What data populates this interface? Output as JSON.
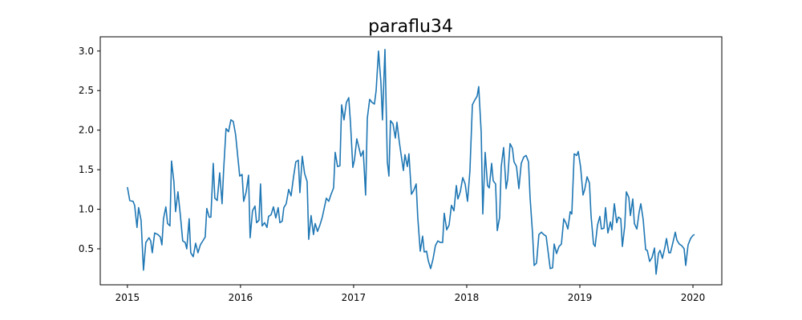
{
  "chart_data": {
    "type": "line",
    "title": "paraflu34",
    "color": "#1f77b4",
    "x": [
      2015.0,
      2015.021,
      2015.05,
      2015.064,
      2015.085,
      2015.099,
      2015.121,
      2015.142,
      2015.163,
      2015.191,
      2015.206,
      2015.22,
      2015.241,
      2015.27,
      2015.291,
      2015.305,
      2015.319,
      2015.34,
      2015.355,
      2015.376,
      2015.39,
      2015.411,
      2015.426,
      2015.447,
      2015.468,
      2015.489,
      2015.511,
      2015.525,
      2015.546,
      2015.56,
      2015.582,
      2015.603,
      2015.624,
      2015.645,
      2015.667,
      2015.688,
      2015.702,
      2015.723,
      2015.738,
      2015.759,
      2015.773,
      2015.794,
      2015.816,
      2015.837,
      2015.851,
      2015.872,
      2015.894,
      2015.915,
      2015.936,
      2015.957,
      2015.979,
      2015.993,
      2016.014,
      2016.028,
      2016.05,
      2016.071,
      2016.085,
      2016.106,
      2016.128,
      2016.142,
      2016.163,
      2016.177,
      2016.191,
      2016.213,
      2016.234,
      2016.248,
      2016.27,
      2016.291,
      2016.312,
      2016.333,
      2016.348,
      2016.369,
      2016.383,
      2016.404,
      2016.426,
      2016.447,
      2016.468,
      2016.489,
      2016.511,
      2016.525,
      2016.546,
      2016.567,
      2016.589,
      2016.603,
      2016.624,
      2016.645,
      2016.66,
      2016.681,
      2016.702,
      2016.723,
      2016.738,
      2016.759,
      2016.78,
      2016.801,
      2016.823,
      2016.837,
      2016.858,
      2016.879,
      2016.894,
      2016.915,
      2016.936,
      2016.957,
      2016.972,
      2016.993,
      2017.007,
      2017.028,
      2017.05,
      2017.064,
      2017.085,
      2017.106,
      2017.121,
      2017.142,
      2017.163,
      2017.184,
      2017.199,
      2017.22,
      2017.241,
      2017.255,
      2017.277,
      2017.298,
      2017.312,
      2017.326,
      2017.348,
      2017.369,
      2017.383,
      2017.404,
      2017.418,
      2017.44,
      2017.454,
      2017.475,
      2017.489,
      2017.511,
      2017.532,
      2017.553,
      2017.567,
      2017.589,
      2017.61,
      2017.624,
      2017.645,
      2017.66,
      2017.681,
      2017.702,
      2017.723,
      2017.745,
      2017.766,
      2017.787,
      2017.801,
      2017.823,
      2017.844,
      2017.865,
      2017.887,
      2017.908,
      2017.922,
      2017.943,
      2017.965,
      2017.986,
      2018.007,
      2018.028,
      2018.05,
      2018.071,
      2018.092,
      2018.106,
      2018.128,
      2018.142,
      2018.163,
      2018.184,
      2018.199,
      2018.22,
      2018.234,
      2018.255,
      2018.27,
      2018.291,
      2018.305,
      2018.326,
      2018.348,
      2018.362,
      2018.383,
      2018.404,
      2018.418,
      2018.44,
      2018.461,
      2018.482,
      2018.504,
      2018.525,
      2018.546,
      2018.56,
      2018.582,
      2018.596,
      2018.617,
      2018.638,
      2018.66,
      2018.681,
      2018.702,
      2018.716,
      2018.738,
      2018.759,
      2018.773,
      2018.794,
      2018.816,
      2018.837,
      2018.858,
      2018.879,
      2018.894,
      2018.915,
      2018.929,
      2018.95,
      2018.972,
      2018.986,
      2019.007,
      2019.028,
      2019.043,
      2019.064,
      2019.085,
      2019.099,
      2019.121,
      2019.135,
      2019.156,
      2019.177,
      2019.191,
      2019.213,
      2019.227,
      2019.248,
      2019.27,
      2019.284,
      2019.305,
      2019.326,
      2019.34,
      2019.362,
      2019.376,
      2019.397,
      2019.411,
      2019.433,
      2019.447,
      2019.468,
      2019.482,
      2019.504,
      2019.525,
      2019.539,
      2019.56,
      2019.582,
      2019.596,
      2019.617,
      2019.638,
      2019.66,
      2019.674,
      2019.695,
      2019.709,
      2019.73,
      2019.752,
      2019.766,
      2019.787,
      2019.801,
      2019.823,
      2019.844,
      2019.858,
      2019.879,
      2019.901,
      2019.922,
      2019.936,
      2019.957,
      2019.979,
      2020.0,
      2020.014
    ],
    "values": [
      1.28,
      1.11,
      1.1,
      1.05,
      0.77,
      1.02,
      0.86,
      0.23,
      0.58,
      0.64,
      0.6,
      0.45,
      0.7,
      0.68,
      0.65,
      0.55,
      0.88,
      1.03,
      0.82,
      0.79,
      1.61,
      1.35,
      0.97,
      1.22,
      0.93,
      0.6,
      0.58,
      0.5,
      0.88,
      0.45,
      0.4,
      0.57,
      0.45,
      0.55,
      0.6,
      0.65,
      1.01,
      0.9,
      0.9,
      1.58,
      1.14,
      1.11,
      1.46,
      1.07,
      1.5,
      2.02,
      1.98,
      2.13,
      2.11,
      1.94,
      1.62,
      1.42,
      1.44,
      1.1,
      1.22,
      1.43,
      0.64,
      0.98,
      1.04,
      0.83,
      0.86,
      1.32,
      0.79,
      0.83,
      0.77,
      0.91,
      0.93,
      1.03,
      0.89,
      1.02,
      0.83,
      0.85,
      1.02,
      1.07,
      1.25,
      1.17,
      1.4,
      1.6,
      1.62,
      1.21,
      1.67,
      1.45,
      1.35,
      0.62,
      0.92,
      0.68,
      0.82,
      0.72,
      0.8,
      0.9,
      1.0,
      1.14,
      1.1,
      1.19,
      1.27,
      1.72,
      1.54,
      1.55,
      2.32,
      2.13,
      2.35,
      2.41,
      2.1,
      1.53,
      1.62,
      1.89,
      1.76,
      1.67,
      1.74,
      1.18,
      2.15,
      2.39,
      2.35,
      2.33,
      2.5,
      3.0,
      2.61,
      2.13,
      3.02,
      1.6,
      1.42,
      2.12,
      2.08,
      1.9,
      2.1,
      1.85,
      1.71,
      1.49,
      1.69,
      1.54,
      1.7,
      1.19,
      1.24,
      1.32,
      0.9,
      0.47,
      0.66,
      0.46,
      0.47,
      0.35,
      0.25,
      0.37,
      0.54,
      0.6,
      0.58,
      0.58,
      0.95,
      0.74,
      0.8,
      1.05,
      0.98,
      1.3,
      1.13,
      1.22,
      1.4,
      1.32,
      1.1,
      1.48,
      2.32,
      2.38,
      2.43,
      2.55,
      1.97,
      0.94,
      1.72,
      1.3,
      1.27,
      1.58,
      1.36,
      1.32,
      0.73,
      0.9,
      1.54,
      1.78,
      1.26,
      1.38,
      1.83,
      1.77,
      1.6,
      1.54,
      1.26,
      1.58,
      1.66,
      1.68,
      1.6,
      1.15,
      0.69,
      0.29,
      0.32,
      0.68,
      0.71,
      0.68,
      0.66,
      0.5,
      0.25,
      0.26,
      0.56,
      0.44,
      0.53,
      0.56,
      0.88,
      0.82,
      0.75,
      0.97,
      0.94,
      1.7,
      1.68,
      1.73,
      1.53,
      1.18,
      1.25,
      1.41,
      1.33,
      0.92,
      0.56,
      0.53,
      0.8,
      0.91,
      0.75,
      0.76,
      1.02,
      0.7,
      0.84,
      0.74,
      1.07,
      0.83,
      0.9,
      0.88,
      0.53,
      0.79,
      1.22,
      1.15,
      0.92,
      1.13,
      0.82,
      0.75,
      0.97,
      1.07,
      0.87,
      0.49,
      0.48,
      0.34,
      0.39,
      0.51,
      0.18,
      0.44,
      0.48,
      0.38,
      0.52,
      0.63,
      0.45,
      0.45,
      0.58,
      0.71,
      0.61,
      0.56,
      0.54,
      0.5,
      0.29,
      0.55,
      0.63,
      0.67,
      0.68
    ],
    "xlim": [
      2014.76,
      2020.255
    ],
    "xticks": [
      2015,
      2016,
      2017,
      2018,
      2019,
      2020
    ],
    "ylim": [
      0.045,
      3.18
    ],
    "yticks": [
      0.5,
      {
        "value": 1,
        "label": "1.0"
      },
      1.5,
      {
        "value": 2,
        "label": "2.0"
      },
      2.5,
      {
        "value": 3,
        "label": "3.0"
      }
    ]
  }
}
